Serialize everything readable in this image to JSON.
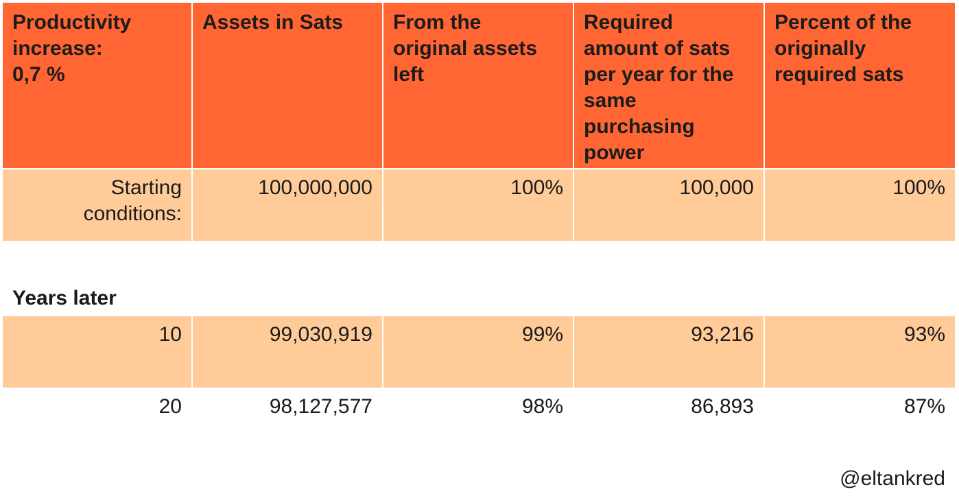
{
  "header": {
    "col1": [
      "Productivity",
      "increase:",
      "0,7 %"
    ],
    "col2": [
      "Assets in Sats"
    ],
    "col3": [
      "From the",
      "original assets",
      "left"
    ],
    "col4": [
      "Required",
      "amount of sats",
      "per year for the",
      "same",
      "purchasing",
      "power"
    ],
    "col5": [
      "Percent of the",
      "originally",
      "required sats"
    ]
  },
  "starting_row": {
    "label": [
      "Starting",
      "conditions:"
    ],
    "assets": "100,000,000",
    "assets_left": "100%",
    "required_sats": "100,000",
    "percent_required": "100%"
  },
  "years_later_label": "Years later",
  "rows": [
    {
      "years": "10",
      "assets": "99,030,919",
      "assets_left": "99%",
      "required_sats": "93,216",
      "percent_required": "93%"
    },
    {
      "years": "20",
      "assets": "98,127,577",
      "assets_left": "98%",
      "required_sats": "86,893",
      "percent_required": "87%"
    }
  ],
  "watermark": "@eltankred",
  "colors": {
    "header_bg": "#ff6633",
    "row_bg": "#ffcc99"
  }
}
